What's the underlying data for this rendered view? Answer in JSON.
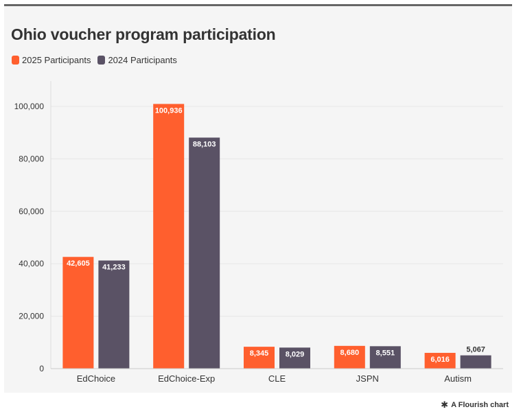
{
  "colors": {
    "s2025": "#ff5f2e",
    "s2024": "#5a5265"
  },
  "footer": {
    "icon": "asterisk-icon",
    "label": "A Flourish chart"
  },
  "chart_data": {
    "type": "bar",
    "title": "Ohio voucher program participation",
    "xlabel": "",
    "ylabel": "",
    "ylim": [
      0,
      110000
    ],
    "yticks": [
      0,
      20000,
      40000,
      60000,
      80000,
      100000
    ],
    "ytick_labels": [
      "0",
      "20,000",
      "40,000",
      "60,000",
      "80,000",
      "100,000"
    ],
    "grid": true,
    "legend_position": "top-left",
    "categories": [
      "EdChoice",
      "EdChoice-Exp",
      "CLE",
      "JSPN",
      "Autism"
    ],
    "series": [
      {
        "name": "2025 Participants",
        "values": [
          42605,
          100936,
          8345,
          8680,
          6016
        ],
        "labels": [
          "42,605",
          "100,936",
          "8,345",
          "8,680",
          "6,016"
        ]
      },
      {
        "name": "2024 Participants",
        "values": [
          41233,
          88103,
          8029,
          8551,
          5067
        ],
        "labels": [
          "41,233",
          "88,103",
          "8,029",
          "8,551",
          "5,067"
        ]
      }
    ]
  }
}
